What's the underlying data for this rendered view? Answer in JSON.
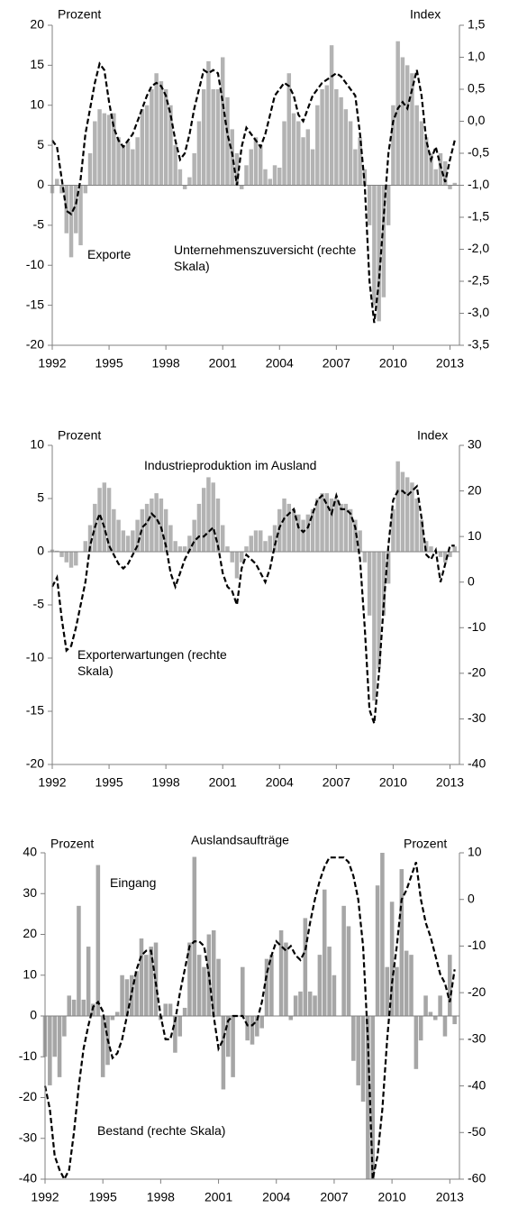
{
  "chart_data": [
    {
      "type": "combo",
      "y_label": "Prozent",
      "y2_label": "Index",
      "x": [
        1992,
        1992.25,
        1992.5,
        1992.75,
        1993,
        1993.25,
        1993.5,
        1993.75,
        1994,
        1994.25,
        1994.5,
        1994.75,
        1995,
        1995.25,
        1995.5,
        1995.75,
        1996,
        1996.25,
        1996.5,
        1996.75,
        1997,
        1997.25,
        1997.5,
        1997.75,
        1998,
        1998.25,
        1998.5,
        1998.75,
        1999,
        1999.25,
        1999.5,
        1999.75,
        2000,
        2000.25,
        2000.5,
        2000.75,
        2001,
        2001.25,
        2001.5,
        2001.75,
        2002,
        2002.25,
        2002.5,
        2002.75,
        2003,
        2003.25,
        2003.5,
        2003.75,
        2004,
        2004.25,
        2004.5,
        2004.75,
        2005,
        2005.25,
        2005.5,
        2005.75,
        2006,
        2006.25,
        2006.5,
        2006.75,
        2007,
        2007.25,
        2007.5,
        2007.75,
        2008,
        2008.25,
        2008.5,
        2008.75,
        2009,
        2009.25,
        2009.5,
        2009.75,
        2010,
        2010.25,
        2010.5,
        2010.75,
        2011,
        2011.25,
        2011.5,
        2011.75,
        2012,
        2012.25,
        2012.5,
        2012.75,
        2013,
        2013.25
      ],
      "series": [
        {
          "name": "Exporte",
          "kind": "bar",
          "color": "#b3b3b3",
          "axis": "y",
          "values": [
            -1,
            0.8,
            -1,
            -6,
            -9,
            -6,
            -7.5,
            -1,
            4,
            8,
            9.5,
            9,
            8.8,
            9,
            6,
            5,
            5.5,
            4.5,
            6,
            9.5,
            10,
            12,
            14,
            13,
            12,
            10,
            5,
            2,
            -0.5,
            1,
            4,
            8,
            12,
            15.5,
            12,
            12,
            16,
            11,
            7,
            4,
            -0.5,
            2.5,
            4.5,
            6,
            5,
            2,
            0.8,
            2.5,
            2.2,
            8,
            14,
            9,
            8,
            6,
            7,
            4.5,
            10,
            12,
            12.5,
            17.5,
            12,
            11,
            9.5,
            8,
            4.5,
            6,
            2,
            -5,
            -15,
            -17,
            -14,
            -5,
            10,
            18,
            16,
            15,
            14,
            10,
            8,
            6,
            4,
            2,
            4,
            3,
            -0.5,
            0.3
          ]
        },
        {
          "name": "Unternehmenszuversicht (rechte Skala)",
          "kind": "line",
          "color": "#000000",
          "axis": "y2",
          "values": [
            -0.3,
            -0.4,
            -0.9,
            -1.4,
            -1.45,
            -1.3,
            -0.9,
            -0.2,
            0.2,
            0.6,
            0.9,
            0.8,
            0.3,
            -0.1,
            -0.3,
            -0.4,
            -0.3,
            -0.2,
            0,
            0.2,
            0.4,
            0.55,
            0.6,
            0.55,
            0.4,
            0.1,
            -0.3,
            -0.6,
            -0.5,
            -0.2,
            0.2,
            0.5,
            0.8,
            0.75,
            0.8,
            0.75,
            0.3,
            -0.2,
            -0.5,
            -1,
            -0.4,
            -0.1,
            -0.2,
            -0.3,
            -0.4,
            -0.2,
            0.1,
            0.4,
            0.5,
            0.6,
            0.55,
            0.4,
            0.1,
            0,
            0.2,
            0.4,
            0.5,
            0.6,
            0.65,
            0.7,
            0.75,
            0.7,
            0.6,
            0.5,
            0.4,
            -0.2,
            -1,
            -2.5,
            -3.15,
            -2.5,
            -1.5,
            -0.5,
            0,
            0.2,
            0.3,
            0.2,
            0.5,
            0.8,
            0.4,
            -0.3,
            -0.6,
            -0.4,
            -0.7,
            -0.95,
            -0.6,
            -0.3
          ]
        }
      ],
      "xlim": [
        1992,
        2013.5
      ],
      "xticks": [
        1992,
        1995,
        1998,
        2001,
        2004,
        2007,
        2010,
        2013
      ],
      "ylim": [
        -20,
        20
      ],
      "yticks": [
        -20,
        -15,
        -10,
        -5,
        0,
        5,
        10,
        15,
        20
      ],
      "y2lim": [
        -3.5,
        1.5
      ],
      "y2ticks": [
        {
          "value": -3.5,
          "label": "-3,5"
        },
        {
          "value": -3,
          "label": "-3,0"
        },
        {
          "value": -2.5,
          "label": "-2,5"
        },
        {
          "value": -2,
          "label": "-2,0"
        },
        {
          "value": -1.5,
          "label": "-1,5"
        },
        {
          "value": -1,
          "label": "-1,0"
        },
        {
          "value": -0.5,
          "label": "-0,5"
        },
        {
          "value": 0,
          "label": "0,0"
        },
        {
          "value": 0.5,
          "label": "0,5"
        },
        {
          "value": 1,
          "label": "1,0"
        },
        {
          "value": 1.5,
          "label": "1,5"
        }
      ]
    },
    {
      "type": "combo",
      "y_label": "Prozent",
      "y2_label": "Index",
      "x": [
        1992,
        1992.25,
        1992.5,
        1992.75,
        1993,
        1993.25,
        1993.5,
        1993.75,
        1994,
        1994.25,
        1994.5,
        1994.75,
        1995,
        1995.25,
        1995.5,
        1995.75,
        1996,
        1996.25,
        1996.5,
        1996.75,
        1997,
        1997.25,
        1997.5,
        1997.75,
        1998,
        1998.25,
        1998.5,
        1998.75,
        1999,
        1999.25,
        1999.5,
        1999.75,
        2000,
        2000.25,
        2000.5,
        2000.75,
        2001,
        2001.25,
        2001.5,
        2001.75,
        2002,
        2002.25,
        2002.5,
        2002.75,
        2003,
        2003.25,
        2003.5,
        2003.75,
        2004,
        2004.25,
        2004.5,
        2004.75,
        2005,
        2005.25,
        2005.5,
        2005.75,
        2006,
        2006.25,
        2006.5,
        2006.75,
        2007,
        2007.25,
        2007.5,
        2007.75,
        2008,
        2008.25,
        2008.5,
        2008.75,
        2009,
        2009.25,
        2009.5,
        2009.75,
        2010,
        2010.25,
        2010.5,
        2010.75,
        2011,
        2011.25,
        2011.5,
        2011.75,
        2012,
        2012.25,
        2012.5,
        2012.75,
        2013,
        2013.25
      ],
      "series": [
        {
          "name": "Industrieproduktion im Ausland",
          "kind": "bar",
          "color": "#b3b3b3",
          "axis": "y",
          "values": [
            0.2,
            0.1,
            -0.5,
            -1,
            -1.5,
            -1.3,
            0,
            1,
            2.5,
            4.5,
            6,
            6.5,
            6,
            4,
            3,
            2,
            1.5,
            2,
            3,
            4,
            4.5,
            5,
            5.5,
            5,
            4,
            2.5,
            1,
            0.5,
            0.5,
            1.5,
            3,
            4.5,
            6,
            7,
            6.5,
            5,
            2.5,
            0.5,
            -1,
            -2.5,
            -1,
            0.5,
            1.5,
            2,
            2,
            1,
            1.5,
            2.5,
            4,
            5,
            4.5,
            4,
            3.5,
            3,
            3.5,
            4,
            5,
            5.5,
            5.5,
            5,
            5,
            4.5,
            4.5,
            4,
            3,
            2,
            -1,
            -6,
            -14,
            -11,
            -6,
            -3,
            4,
            8.5,
            7.5,
            7,
            6.5,
            5,
            3,
            1,
            0.5,
            0,
            -0.5,
            -1,
            -0.5,
            0.5
          ]
        },
        {
          "name": "Exporterwartungen (rechte Skala)",
          "kind": "line",
          "color": "#000000",
          "axis": "y2",
          "values": [
            -1,
            1,
            -8,
            -15,
            -14,
            -10,
            -5,
            0,
            8,
            12,
            15,
            12,
            8,
            6,
            4,
            3,
            4,
            6,
            8,
            12,
            13,
            15,
            14,
            12,
            8,
            2,
            -1,
            2,
            5,
            7,
            9,
            10,
            10,
            11,
            12,
            8,
            2,
            -1,
            -2,
            -5,
            3,
            6,
            5,
            4,
            2,
            0,
            3,
            8,
            12,
            14,
            15,
            16,
            12,
            11,
            12,
            15,
            18,
            19,
            17,
            15,
            19,
            16,
            16,
            15,
            12,
            5,
            -10,
            -28,
            -31,
            -20,
            -5,
            8,
            18,
            20,
            20,
            19,
            20,
            21,
            14,
            6,
            5,
            7,
            0,
            4,
            8,
            8
          ]
        }
      ],
      "xlim": [
        1992,
        2013.5
      ],
      "xticks": [
        1992,
        1995,
        1998,
        2001,
        2004,
        2007,
        2010,
        2013
      ],
      "ylim": [
        -20,
        10
      ],
      "yticks": [
        -20,
        -15,
        -10,
        -5,
        0,
        5,
        10
      ],
      "y2lim": [
        -40,
        30
      ],
      "y2ticks": [
        -40,
        -30,
        -20,
        -10,
        0,
        10,
        20,
        30
      ]
    },
    {
      "type": "combo",
      "title": "Auslandsaufträge",
      "y_label": "Prozent",
      "y2_label": "Prozent",
      "x": [
        1992,
        1992.25,
        1992.5,
        1992.75,
        1993,
        1993.25,
        1993.5,
        1993.75,
        1994,
        1994.25,
        1994.5,
        1994.75,
        1995,
        1995.25,
        1995.5,
        1995.75,
        1996,
        1996.25,
        1996.5,
        1996.75,
        1997,
        1997.25,
        1997.5,
        1997.75,
        1998,
        1998.25,
        1998.5,
        1998.75,
        1999,
        1999.25,
        1999.5,
        1999.75,
        2000,
        2000.25,
        2000.5,
        2000.75,
        2001,
        2001.25,
        2001.5,
        2001.75,
        2002,
        2002.25,
        2002.5,
        2002.75,
        2003,
        2003.25,
        2003.5,
        2003.75,
        2004,
        2004.25,
        2004.5,
        2004.75,
        2005,
        2005.25,
        2005.5,
        2005.75,
        2006,
        2006.25,
        2006.5,
        2006.75,
        2007,
        2007.25,
        2007.5,
        2007.75,
        2008,
        2008.25,
        2008.5,
        2008.75,
        2009,
        2009.25,
        2009.5,
        2009.75,
        2010,
        2010.25,
        2010.5,
        2010.75,
        2011,
        2011.25,
        2011.5,
        2011.75,
        2012,
        2012.25,
        2012.5,
        2012.75,
        2013,
        2013.25
      ],
      "series": [
        {
          "name": "Eingang",
          "kind": "bar",
          "color": "#a6a6a6",
          "axis": "y",
          "values": [
            -10,
            -17,
            -10,
            -15,
            -5,
            5,
            4,
            27,
            4,
            17,
            3,
            37,
            -15,
            -12,
            -1,
            1,
            10,
            9,
            10,
            11,
            19,
            15,
            17,
            18,
            -1,
            3,
            3,
            -9,
            -5,
            2,
            18,
            39,
            15,
            12,
            20,
            21,
            14,
            -18,
            -10,
            -15,
            0,
            12,
            -6,
            -7,
            -5,
            -3,
            14,
            15,
            0,
            21,
            18,
            -1,
            5,
            6,
            24,
            6,
            5,
            15,
            31,
            17,
            10,
            0,
            27,
            22,
            -11,
            -17,
            -21,
            -40,
            -40,
            32,
            40,
            12,
            28,
            12,
            36,
            16,
            15,
            -13,
            -6,
            5,
            1,
            -1,
            5,
            -5,
            15,
            -2
          ]
        },
        {
          "name": "Bestand (rechte Skala)",
          "kind": "line",
          "color": "#000000",
          "axis": "y2",
          "values": [
            -40,
            -45,
            -55,
            -58,
            -60,
            -58,
            -50,
            -40,
            -32,
            -27,
            -23,
            -22,
            -24,
            -30,
            -34,
            -33,
            -30,
            -25,
            -20,
            -15,
            -12,
            -11,
            -11,
            -18,
            -25,
            -30,
            -30,
            -26,
            -20,
            -15,
            -10,
            -9,
            -9,
            -10,
            -16,
            -25,
            -32,
            -30,
            -26,
            -25,
            -25,
            -25,
            -27,
            -27,
            -26,
            -22,
            -16,
            -12,
            -9,
            -10,
            -11,
            -10,
            -12,
            -13,
            -11,
            -5,
            0,
            4,
            7,
            9,
            9,
            9,
            9,
            8,
            5,
            0,
            -10,
            -30,
            -60,
            -55,
            -45,
            -30,
            -18,
            -10,
            0,
            2,
            5,
            8,
            0,
            -5,
            -8,
            -12,
            -16,
            -18,
            -22,
            -15
          ]
        }
      ],
      "xlim": [
        1992,
        2013.5
      ],
      "xticks": [
        1992,
        1995,
        1998,
        2001,
        2004,
        2007,
        2010,
        2013
      ],
      "ylim": [
        -40,
        40
      ],
      "yticks": [
        -40,
        -30,
        -20,
        -10,
        0,
        10,
        20,
        30,
        40
      ],
      "y2lim": [
        -60,
        10
      ],
      "y2ticks": [
        -60,
        -50,
        -40,
        -30,
        -20,
        -10,
        0,
        10
      ]
    }
  ]
}
